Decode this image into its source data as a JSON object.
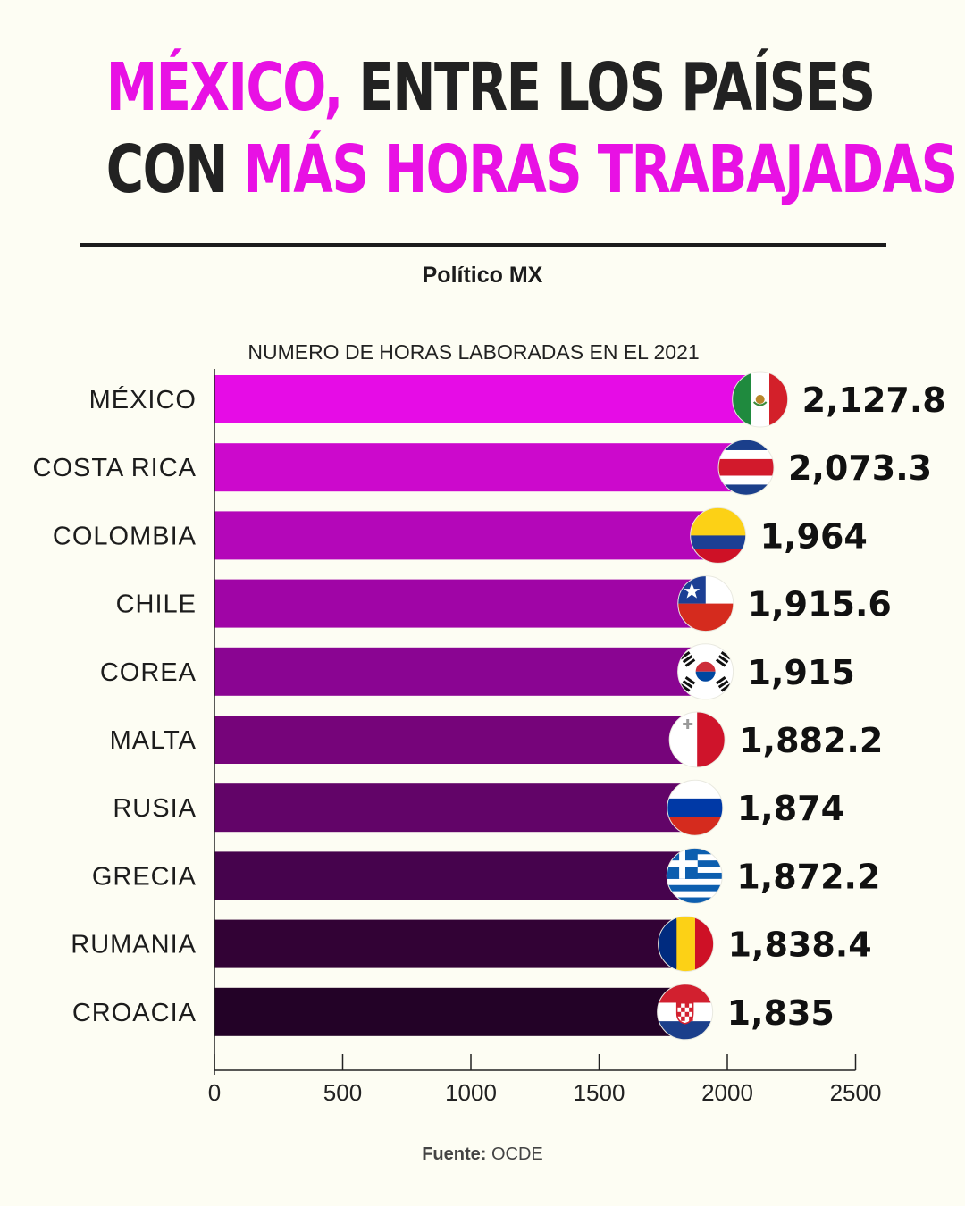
{
  "header": {
    "title_line1_pink": "MÉXICO,",
    "title_line1_dark": "ENTRE LOS PAÍSES",
    "title_line2_dark": "CON",
    "title_line2_pink": "MÁS HORAS TRABAJADAS",
    "byline": "Político MX"
  },
  "footer": {
    "source_label": "Fuente:",
    "source_value": "OCDE"
  },
  "colors": {
    "accent_pink": "#e811e4",
    "title_dark": "#222222",
    "background": "#fdfdf3",
    "bars": [
      "#e60ce6",
      "#cc09cc",
      "#b407b9",
      "#a005a6",
      "#8a0592",
      "#76047a",
      "#620468",
      "#46034d",
      "#320235",
      "#230227"
    ]
  },
  "chart_data": {
    "type": "bar",
    "orientation": "horizontal",
    "title": "NUMERO DE HORAS LABORADAS EN EL 2021",
    "categories": [
      "MÉXICO",
      "COSTA RICA",
      "COLOMBIA",
      "CHILE",
      "COREA",
      "MALTA",
      "RUSIA",
      "GRECIA",
      "RUMANIA",
      "CROACIA"
    ],
    "values": [
      2127.8,
      2073.3,
      1964,
      1915.6,
      1915,
      1882.2,
      1874,
      1872.2,
      1838.4,
      1835
    ],
    "value_labels": [
      "2,127.8",
      "2,073.3",
      "1,964",
      "1,915.6",
      "1,915",
      "1,882.2",
      "1,874",
      "1,872.2",
      "1,838.4",
      "1,835"
    ],
    "flag_icons": [
      "mexico-flag-icon",
      "costa-rica-flag-icon",
      "colombia-flag-icon",
      "chile-flag-icon",
      "korea-flag-icon",
      "malta-flag-icon",
      "russia-flag-icon",
      "greece-flag-icon",
      "romania-flag-icon",
      "croatia-flag-icon"
    ],
    "xlim": [
      0,
      2500
    ],
    "xticks": [
      0,
      500,
      1000,
      1500,
      2000,
      2500
    ],
    "xlabel": "",
    "ylabel": "",
    "grid": false
  }
}
